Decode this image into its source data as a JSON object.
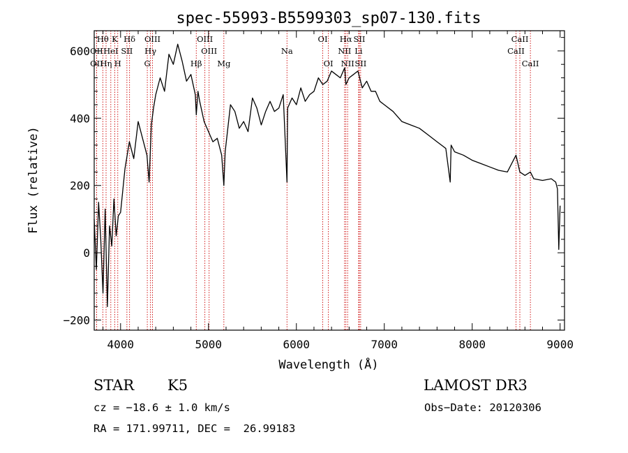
{
  "chart_data": {
    "type": "line",
    "title": "spec-55993-B5599303_sp07-130.fits",
    "xlabel": "Wavelength (Å)",
    "ylabel": "Flux (relative)",
    "xlim": [
      3700,
      9050
    ],
    "ylim": [
      -230,
      660
    ],
    "x_ticks": [
      4000,
      5000,
      6000,
      7000,
      8000,
      9000
    ],
    "y_ticks": [
      -200,
      0,
      200,
      400,
      600
    ],
    "grid": false,
    "series": [
      {
        "x": [
          3700,
          3725,
          3750,
          3775,
          3800,
          3825,
          3850,
          3875,
          3900,
          3925,
          3950,
          3975,
          4000,
          4050,
          4100,
          4150,
          4200,
          4250,
          4300,
          4325,
          4350,
          4375,
          4400,
          4450,
          4500,
          4550,
          4600,
          4650,
          4700,
          4750,
          4800,
          4850,
          4861,
          4880,
          4900,
          4950,
          5000,
          5050,
          5100,
          5150,
          5175,
          5190,
          5250,
          5300,
          5350,
          5400,
          5450,
          5500,
          5550,
          5600,
          5650,
          5700,
          5750,
          5800,
          5850,
          5893,
          5900,
          5950,
          6000,
          6050,
          6100,
          6150,
          6200,
          6250,
          6300,
          6350,
          6400,
          6450,
          6500,
          6550,
          6563,
          6600,
          6650,
          6700,
          6750,
          6800,
          6850,
          6900,
          6950,
          7000,
          7100,
          7200,
          7300,
          7400,
          7500,
          7600,
          7700,
          7750,
          7760,
          7800,
          7900,
          8000,
          8100,
          8200,
          8300,
          8400,
          8498,
          8542,
          8600,
          8662,
          8700,
          8800,
          8900,
          8950,
          8970,
          8985,
          9000
        ],
        "y": [
          100,
          -50,
          150,
          40,
          -120,
          130,
          -160,
          80,
          20,
          160,
          50,
          110,
          120,
          250,
          330,
          280,
          390,
          340,
          290,
          210,
          380,
          430,
          470,
          520,
          480,
          590,
          560,
          620,
          570,
          510,
          530,
          470,
          410,
          480,
          450,
          390,
          360,
          330,
          340,
          290,
          200,
          300,
          440,
          420,
          370,
          390,
          360,
          460,
          430,
          380,
          420,
          450,
          420,
          430,
          470,
          210,
          430,
          460,
          440,
          490,
          450,
          470,
          480,
          520,
          500,
          510,
          540,
          530,
          520,
          550,
          500,
          520,
          530,
          540,
          490,
          510,
          480,
          480,
          450,
          440,
          420,
          390,
          380,
          370,
          350,
          330,
          310,
          210,
          320,
          300,
          290,
          275,
          265,
          255,
          245,
          240,
          290,
          240,
          230,
          240,
          220,
          215,
          220,
          210,
          190,
          10,
          140
        ]
      }
    ],
    "line_annotations": [
      {
        "label": "Hθ",
        "x": 3798,
        "row": 0
      },
      {
        "label": "K",
        "x": 3934,
        "row": 0
      },
      {
        "label": "Hδ",
        "x": 4102,
        "row": 0
      },
      {
        "label": "OIII",
        "x": 4363,
        "row": 0
      },
      {
        "label": "OIII",
        "x": 4959,
        "row": 0
      },
      {
        "label": "OI",
        "x": 6300,
        "row": 0
      },
      {
        "label": "Hα",
        "x": 6563,
        "row": 0
      },
      {
        "label": "SII",
        "x": 6716,
        "row": 0
      },
      {
        "label": "CaII",
        "x": 8542,
        "row": 0
      },
      {
        "label": "OII",
        "x": 3727,
        "row": 1
      },
      {
        "label": "HeI",
        "x": 3889,
        "row": 1
      },
      {
        "label": "SII",
        "x": 4072,
        "row": 1
      },
      {
        "label": "Hγ",
        "x": 4340,
        "row": 1
      },
      {
        "label": "OIII",
        "x": 5007,
        "row": 1
      },
      {
        "label": "Na",
        "x": 5893,
        "row": 1
      },
      {
        "label": "NII",
        "x": 6548,
        "row": 1
      },
      {
        "label": "Li",
        "x": 6708,
        "row": 1
      },
      {
        "label": "CaII",
        "x": 8498,
        "row": 1
      },
      {
        "label": "OII",
        "x": 3727,
        "row": 2
      },
      {
        "label": "Hη",
        "x": 3835,
        "row": 2
      },
      {
        "label": "H",
        "x": 3968,
        "row": 2
      },
      {
        "label": "G",
        "x": 4304,
        "row": 2
      },
      {
        "label": "Hβ",
        "x": 4861,
        "row": 2
      },
      {
        "label": "Mg",
        "x": 5175,
        "row": 2
      },
      {
        "label": "OI",
        "x": 6364,
        "row": 2
      },
      {
        "label": "NII",
        "x": 6583,
        "row": 2
      },
      {
        "label": "SII",
        "x": 6731,
        "row": 2
      },
      {
        "label": "CaII",
        "x": 8662,
        "row": 2
      }
    ],
    "line_color": "#cc0000"
  },
  "info": {
    "classification": "STAR",
    "subclass": "K5",
    "survey": "LAMOST DR3",
    "cz": "cz = −18.6 ± 1.0 km/s",
    "obs_date": "Obs−Date: 20120306",
    "coords": "RA = 171.99711, DEC =  26.99183"
  }
}
